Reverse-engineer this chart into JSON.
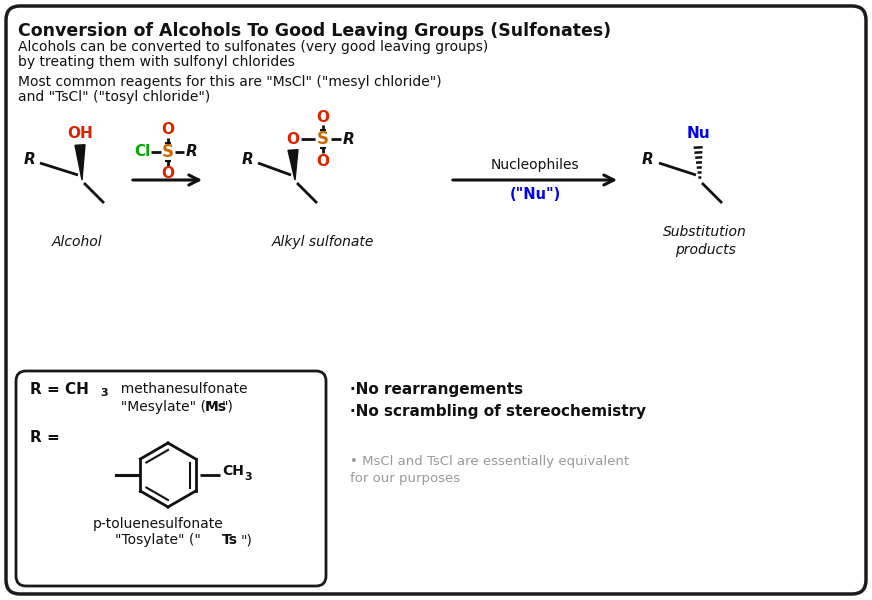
{
  "title": "Conversion of Alcohols To Good Leaving Groups (Sulfonates)",
  "subtitle1": "Alcohols can be converted to sulfonates (very good leaving groups)",
  "subtitle2": "by treating them with sulfonyl chlorides",
  "subtitle3": "Most common reagents for this are \"MsCl\" (\"mesyl chloride\")",
  "subtitle4": "and \"TsCl\" (\"tosyl chloride\")",
  "bg_color": "#ffffff",
  "border_color": "#1a1a1a",
  "text_color": "#111111",
  "red_color": "#dd2200",
  "green_color": "#00aa00",
  "orange_color": "#cc6600",
  "blue_color": "#0000ee",
  "gray_color": "#999999"
}
